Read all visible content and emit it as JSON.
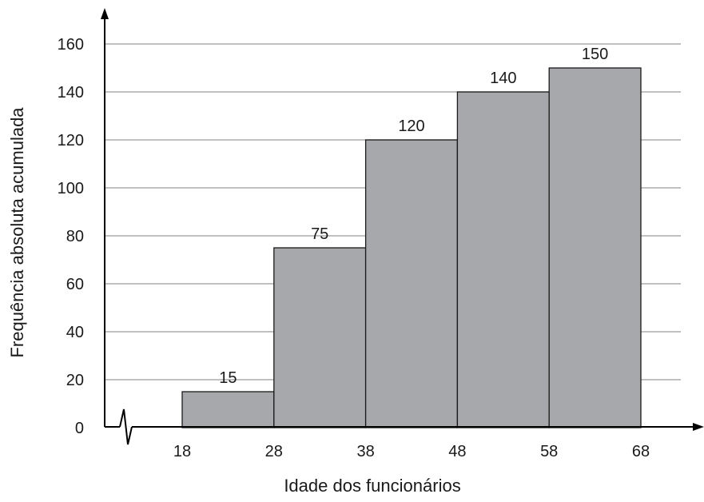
{
  "chart_data": {
    "type": "bar",
    "subtype": "histogram",
    "bins": [
      {
        "from": 18,
        "to": 28,
        "value": 15
      },
      {
        "from": 28,
        "to": 38,
        "value": 75
      },
      {
        "from": 38,
        "to": 48,
        "value": 120
      },
      {
        "from": 48,
        "to": 58,
        "value": 140
      },
      {
        "from": 58,
        "to": 68,
        "value": 150
      }
    ],
    "data_labels": [
      "15",
      "75",
      "120",
      "140",
      "150"
    ],
    "x_ticks": [
      "18",
      "28",
      "38",
      "48",
      "58",
      "68"
    ],
    "y_ticks": [
      "0",
      "20",
      "40",
      "60",
      "80",
      "100",
      "120",
      "140",
      "160"
    ],
    "xlabel": "Idade dos funcionários",
    "ylabel": "Frequência absoluta acumulada",
    "xlim": [
      18,
      68
    ],
    "ylim": [
      0,
      160
    ],
    "grid": "horizontal",
    "axis_break": "x",
    "colors": {
      "bar_fill": "#a7a8ac",
      "bar_stroke": "#1a1a1a",
      "grid": "#9a9a9a",
      "axis": "#000000"
    }
  }
}
